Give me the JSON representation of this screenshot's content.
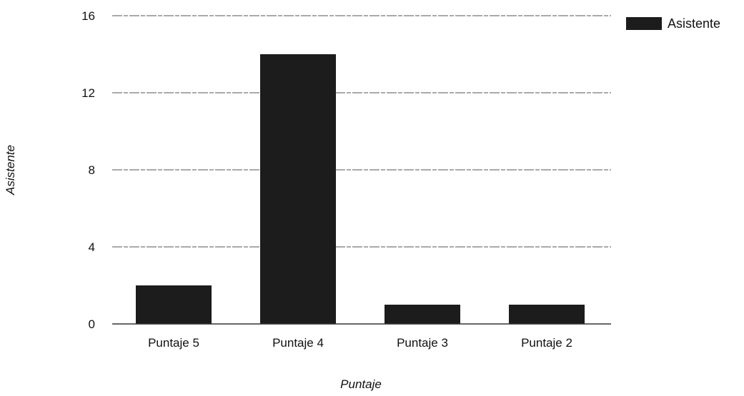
{
  "chart_data": {
    "type": "bar",
    "categories": [
      "Puntaje 5",
      "Puntaje 4",
      "Puntaje 3",
      "Puntaje 2"
    ],
    "series": [
      {
        "name": "Asistente",
        "values": [
          2,
          14,
          1,
          1
        ],
        "color": "#1c1c1c"
      }
    ],
    "title": "",
    "xlabel": "Puntaje",
    "ylabel": "Asistente",
    "ylim": [
      0,
      16
    ],
    "yticks": [
      0,
      4,
      8,
      12,
      16
    ],
    "grid": true,
    "legend_position": "top-right",
    "colors": {
      "bar": "#1c1c1c",
      "grid": "#555555",
      "axis": "#333333",
      "text": "#111111"
    }
  }
}
